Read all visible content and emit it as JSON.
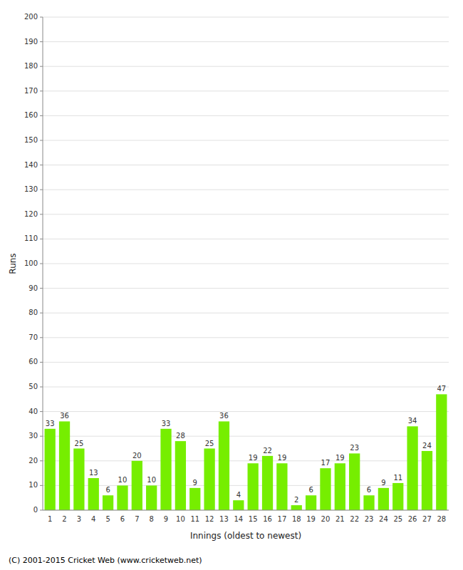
{
  "chart_data": {
    "type": "bar",
    "categories": [
      "1",
      "2",
      "3",
      "4",
      "5",
      "6",
      "7",
      "8",
      "9",
      "10",
      "11",
      "12",
      "13",
      "14",
      "15",
      "16",
      "17",
      "18",
      "19",
      "20",
      "21",
      "22",
      "23",
      "24",
      "25",
      "26",
      "27",
      "28"
    ],
    "values": [
      33,
      36,
      25,
      13,
      6,
      10,
      20,
      10,
      33,
      28,
      9,
      25,
      36,
      4,
      19,
      22,
      19,
      2,
      6,
      17,
      19,
      23,
      6,
      9,
      11,
      34,
      24,
      47
    ],
    "color": "#76ee00",
    "x_label": "Innings (oldest to newest)",
    "y_label": "Runs",
    "ylim": [
      0,
      200
    ],
    "yticks": [
      0,
      10,
      20,
      30,
      40,
      50,
      60,
      70,
      80,
      90,
      100,
      110,
      120,
      130,
      140,
      150,
      160,
      170,
      180,
      190,
      200
    ],
    "grid": true,
    "data_labels": true,
    "annotations": [
      "(C) 2001-2015 Cricket Web (www.cricketweb.net)"
    ]
  }
}
